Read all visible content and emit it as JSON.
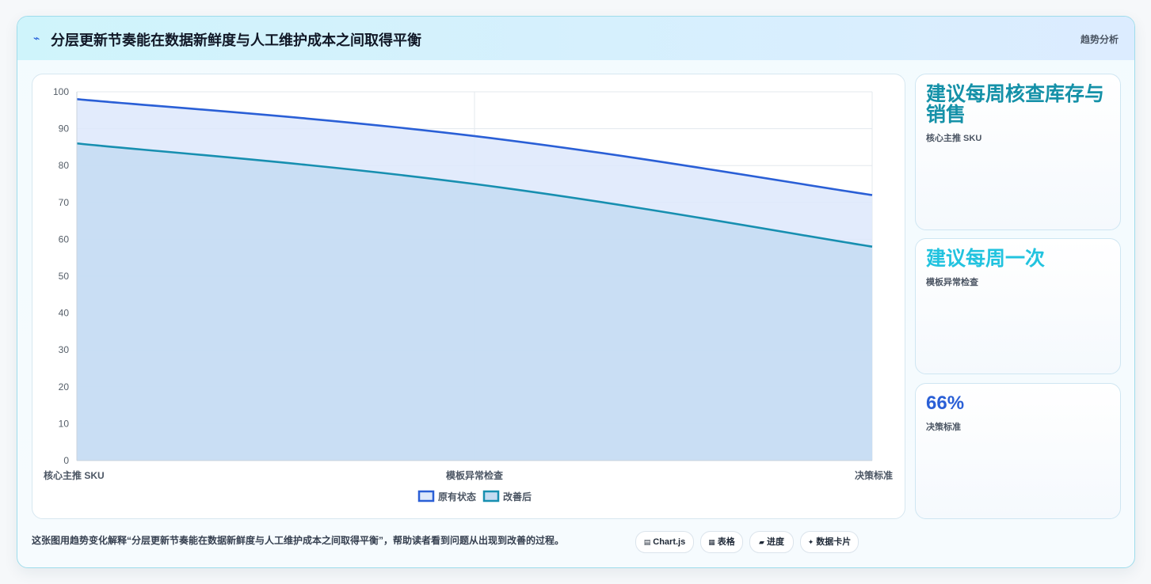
{
  "header": {
    "icon": "trend-icon",
    "title": "分层更新节奏能在数据新鲜度与人工维护成本之间取得平衡",
    "right_label": "趋势分析"
  },
  "chart_data": {
    "type": "area",
    "categories": [
      "核心主推 SKU",
      "模板异常检查",
      "决策标准"
    ],
    "series": [
      {
        "name": "原有状态",
        "values": [
          98,
          88,
          72
        ],
        "color": "#2a5fd6",
        "fill": "#dde8fb"
      },
      {
        "name": "改善后",
        "values": [
          86,
          75,
          58
        ],
        "color": "#178fb0",
        "fill": "#c4dcf2"
      }
    ],
    "ylim": [
      0,
      100
    ],
    "yticks": [
      0,
      10,
      20,
      30,
      40,
      50,
      60,
      70,
      80,
      90,
      100
    ],
    "grid": true,
    "legend": "bottom-center"
  },
  "side_cards": [
    {
      "big": "建议每周核查库存与销售",
      "small": "核心主推 SKU",
      "color": "#1591a8"
    },
    {
      "big": "建议每周一次",
      "small": "模板异常检查",
      "color": "#22c3df"
    },
    {
      "big": "66%",
      "small": "决策标准",
      "color": "#2a5fd6"
    }
  ],
  "footer": {
    "text": "这张图用趋势变化解释“分层更新节奏能在数据新鲜度与人工维护成本之间取得平衡”，帮助读者看到问题从出现到改善的过程。",
    "chips": [
      {
        "icon": "chart-icon",
        "glyph": "▤",
        "label": "Chart.js"
      },
      {
        "icon": "table-icon",
        "glyph": "▦",
        "label": "表格"
      },
      {
        "icon": "progress-icon",
        "glyph": "▰",
        "label": "进度"
      },
      {
        "icon": "sparkle-icon",
        "glyph": "✦",
        "label": "数据卡片"
      }
    ]
  }
}
